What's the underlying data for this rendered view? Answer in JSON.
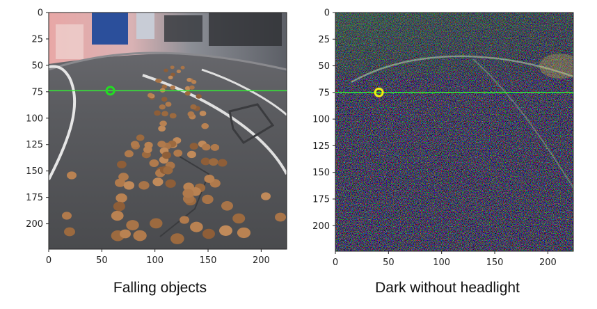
{
  "panels": [
    {
      "id": "left",
      "caption": "Falling objects",
      "x_ticks": [
        "0",
        "50",
        "100",
        "150",
        "200"
      ],
      "y_ticks": [
        "0",
        "25",
        "50",
        "75",
        "100",
        "125",
        "150",
        "175",
        "200"
      ],
      "marker": {
        "x": 58,
        "y": 74,
        "color": "#22dd22"
      },
      "line": {
        "y": 74,
        "color": "#33ee33"
      }
    },
    {
      "id": "right",
      "caption": "Dark without headlight",
      "x_ticks": [
        "0",
        "50",
        "100",
        "150",
        "200"
      ],
      "y_ticks": [
        "0",
        "25",
        "50",
        "75",
        "100",
        "125",
        "150",
        "175",
        "200"
      ],
      "marker": {
        "x": 41,
        "y": 75,
        "color": "#f0ef10"
      },
      "line": {
        "y": 75,
        "color": "#33ee33"
      }
    }
  ]
}
